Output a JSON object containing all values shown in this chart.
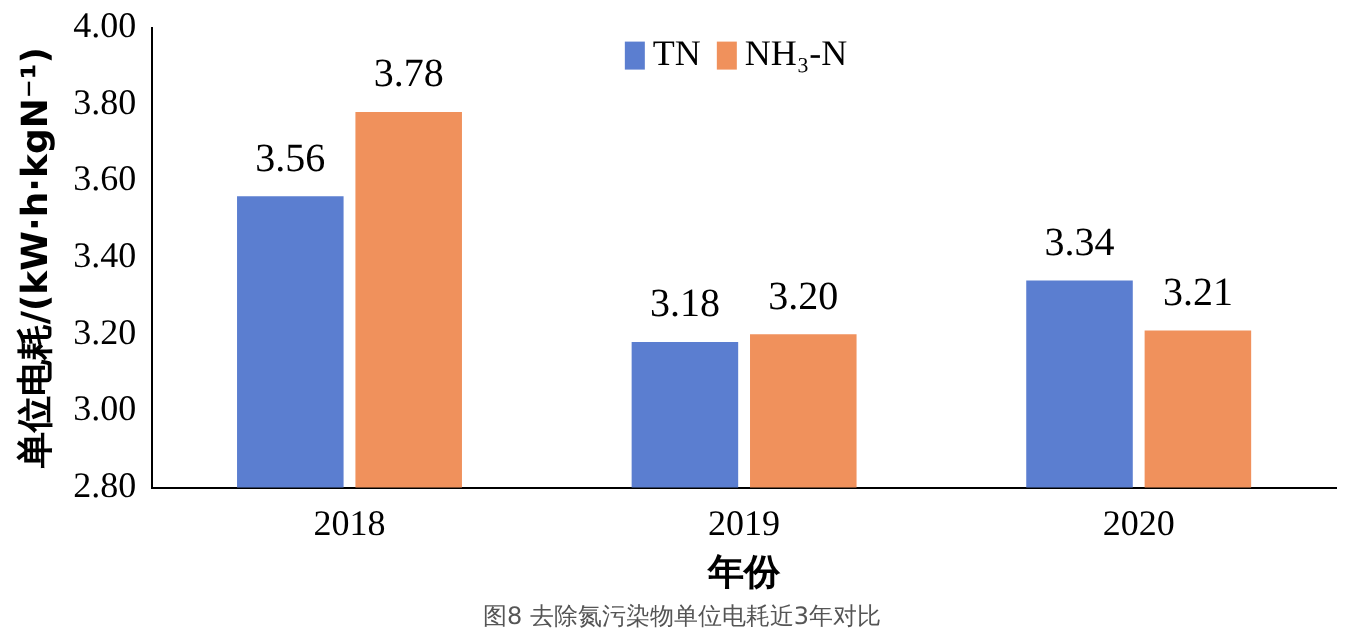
{
  "chart_data": {
    "type": "bar",
    "categories": [
      "2018",
      "2019",
      "2020"
    ],
    "series": [
      {
        "name": "TN",
        "color": "#5b7ed0",
        "values": [
          3.56,
          3.18,
          3.34
        ],
        "value_labels": [
          "3.56",
          "3.18",
          "3.34"
        ]
      },
      {
        "name": "NH₃-N",
        "color": "#f0915c",
        "values": [
          3.78,
          3.2,
          3.21
        ],
        "value_labels": [
          "3.78",
          "3.20",
          "3.21"
        ]
      }
    ],
    "ylim": [
      2.8,
      4.0
    ],
    "yticks": [
      {
        "value": 2.8,
        "label": "2.80"
      },
      {
        "value": 3.0,
        "label": "3.00"
      },
      {
        "value": 3.2,
        "label": "3.20"
      },
      {
        "value": 3.4,
        "label": "3.40"
      },
      {
        "value": 3.6,
        "label": "3.60"
      },
      {
        "value": 3.8,
        "label": "3.80"
      },
      {
        "value": 4.0,
        "label": "4.00"
      }
    ],
    "xlabel": "年份",
    "ylabel": "单位电耗/(kW·h·kgN⁻¹)",
    "legend": "top",
    "grid": false,
    "annotations": [
      "图8 去除氮污染物单位电耗近3年对比"
    ]
  }
}
